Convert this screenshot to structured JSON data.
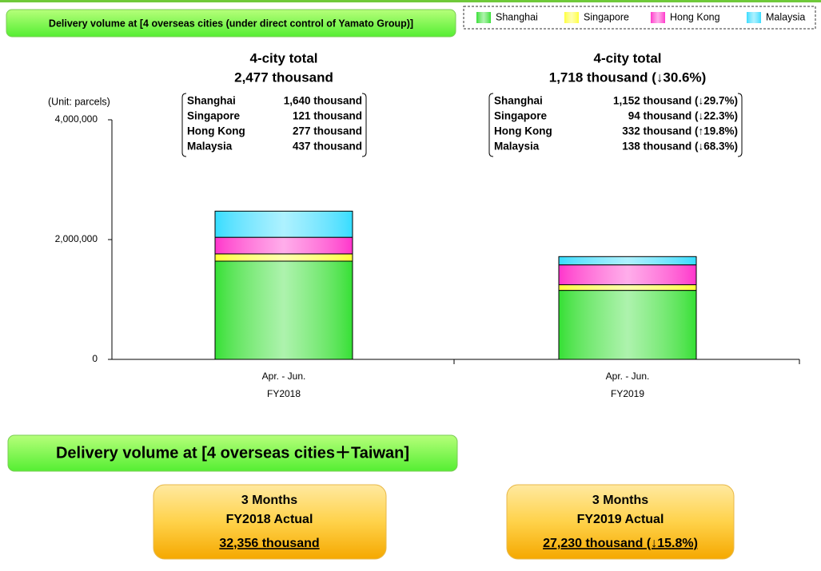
{
  "chart_data": {
    "type": "stacked_bar",
    "title": "Delivery volume at [4 overseas cities (under direct control of Yamato Group)]",
    "y_label": "(Unit: parcels)",
    "categories": [
      [
        "Apr. - Jun.",
        "FY2018"
      ],
      [
        "Apr. - Jun.",
        "FY2019"
      ]
    ],
    "series": [
      {
        "name": "Shanghai",
        "color": "#33e033",
        "values": [
          1640000,
          1152000
        ],
        "value_labels": [
          "1,640 thousand",
          "1,152 thousand (↓29.7%)"
        ]
      },
      {
        "name": "Singapore",
        "color": "#ffff33",
        "values": [
          121000,
          94000
        ],
        "value_labels": [
          "121 thousand",
          "94 thousand (↓22.3%)"
        ]
      },
      {
        "name": "Hong Kong",
        "color": "#ff33cc",
        "values": [
          277000,
          332000
        ],
        "value_labels": [
          "277 thousand",
          "332 thousand (↑19.8%)"
        ]
      },
      {
        "name": "Malaysia",
        "color": "#33ddff",
        "values": [
          437000,
          138000
        ],
        "value_labels": [
          "437 thousand",
          "138 thousand (↓68.3%)"
        ]
      }
    ],
    "total_title": "4-city total",
    "totals": [
      "2,477 thousand",
      "1,718 thousand (↓30.6%)"
    ],
    "ylim": [
      0,
      4000000
    ],
    "yticks": [
      0,
      {
        "value": 2000000,
        "label": "2,000,000"
      },
      {
        "value": 4000000,
        "label": "4,000,000"
      }
    ],
    "legend": "top-right"
  },
  "summary": {
    "title": "Delivery volume at [4 overseas cities＋Taiwan]",
    "boxes": [
      {
        "period": "3 Months",
        "label": "FY2018 Actual",
        "value": "32,356 thousand"
      },
      {
        "period": "3 Months",
        "label": "FY2019 Actual",
        "value": "27,230 thousand (↓15.8%)"
      }
    ]
  }
}
